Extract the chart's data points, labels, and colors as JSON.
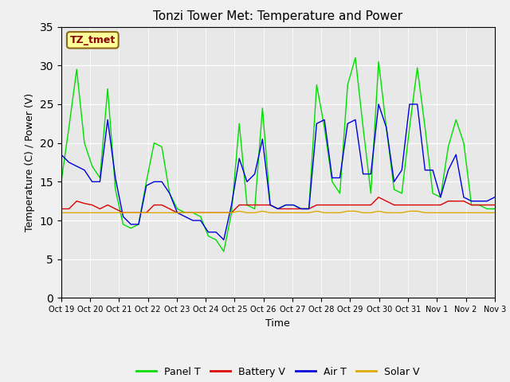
{
  "title": "Tonzi Tower Met: Temperature and Power",
  "ylabel": "Temperature (C) / Power (V)",
  "xlabel": "Time",
  "ylim": [
    0,
    35
  ],
  "annotation_label": "TZ_tmet",
  "fig_facecolor": "#f0f0f0",
  "ax_facecolor": "#e8e8e8",
  "legend_entries": [
    "Panel T",
    "Battery V",
    "Air T",
    "Solar V"
  ],
  "legend_colors": [
    "#00dd00",
    "#dd0000",
    "#0000dd",
    "#ddaa00"
  ],
  "xtick_labels": [
    "Oct 19",
    "Oct 20",
    "Oct 21",
    "Oct 22",
    "Oct 23",
    "Oct 24",
    "Oct 25",
    "Oct 26",
    "Oct 27",
    "Oct 28",
    "Oct 29",
    "Oct 30",
    "Oct 31",
    "Nov 1",
    "Nov 2",
    "Nov 3"
  ],
  "panel_t": [
    15.0,
    22.0,
    29.5,
    20.0,
    17.0,
    15.5,
    27.0,
    14.0,
    9.5,
    9.0,
    9.5,
    15.0,
    20.0,
    19.5,
    13.5,
    11.5,
    11.0,
    11.0,
    10.5,
    8.0,
    7.5,
    6.0,
    11.0,
    22.5,
    12.0,
    11.5,
    24.5,
    12.0,
    11.5,
    12.0,
    12.0,
    11.5,
    11.5,
    27.5,
    22.0,
    15.0,
    13.5,
    27.5,
    31.0,
    22.0,
    13.5,
    30.5,
    22.0,
    14.0,
    13.5,
    22.0,
    29.7,
    22.0,
    13.5,
    13.0,
    19.5,
    23.0,
    20.0,
    12.0,
    12.0,
    11.5,
    11.5
  ],
  "battery_v": [
    11.5,
    11.5,
    12.5,
    12.2,
    12.0,
    11.5,
    12.0,
    11.5,
    11.0,
    11.0,
    11.0,
    11.0,
    12.0,
    12.0,
    11.5,
    11.0,
    11.0,
    11.0,
    11.0,
    11.0,
    11.0,
    11.0,
    11.0,
    12.0,
    12.0,
    12.0,
    12.0,
    12.0,
    11.5,
    11.5,
    11.5,
    11.5,
    11.5,
    12.0,
    12.0,
    12.0,
    12.0,
    12.0,
    12.0,
    12.0,
    12.0,
    13.0,
    12.5,
    12.0,
    12.0,
    12.0,
    12.0,
    12.0,
    12.0,
    12.0,
    12.5,
    12.5,
    12.5,
    12.0,
    12.0,
    12.0,
    12.0
  ],
  "air_t": [
    18.5,
    17.5,
    17.0,
    16.5,
    15.0,
    15.0,
    23.0,
    15.5,
    10.5,
    9.5,
    9.5,
    14.5,
    15.0,
    15.0,
    13.5,
    11.0,
    10.5,
    10.0,
    10.0,
    8.5,
    8.5,
    7.5,
    12.0,
    18.0,
    15.0,
    16.0,
    20.5,
    12.0,
    11.5,
    12.0,
    12.0,
    11.5,
    11.5,
    22.5,
    23.0,
    15.5,
    15.5,
    22.5,
    23.0,
    16.0,
    16.0,
    25.0,
    22.0,
    15.0,
    16.5,
    25.0,
    25.0,
    16.5,
    16.5,
    13.0,
    16.5,
    18.5,
    13.0,
    12.5,
    12.5,
    12.5,
    13.0
  ],
  "solar_v": [
    11.0,
    11.0,
    11.0,
    11.0,
    11.0,
    11.0,
    11.0,
    11.0,
    11.0,
    11.0,
    11.0,
    11.0,
    11.0,
    11.0,
    11.0,
    11.0,
    11.0,
    11.0,
    11.0,
    11.0,
    11.0,
    11.0,
    11.0,
    11.2,
    11.0,
    11.0,
    11.2,
    11.0,
    11.0,
    11.0,
    11.0,
    11.0,
    11.0,
    11.2,
    11.0,
    11.0,
    11.0,
    11.2,
    11.2,
    11.0,
    11.0,
    11.2,
    11.0,
    11.0,
    11.0,
    11.2,
    11.2,
    11.0,
    11.0,
    11.0,
    11.0,
    11.0,
    11.0,
    11.0,
    11.0,
    11.0,
    11.0
  ]
}
